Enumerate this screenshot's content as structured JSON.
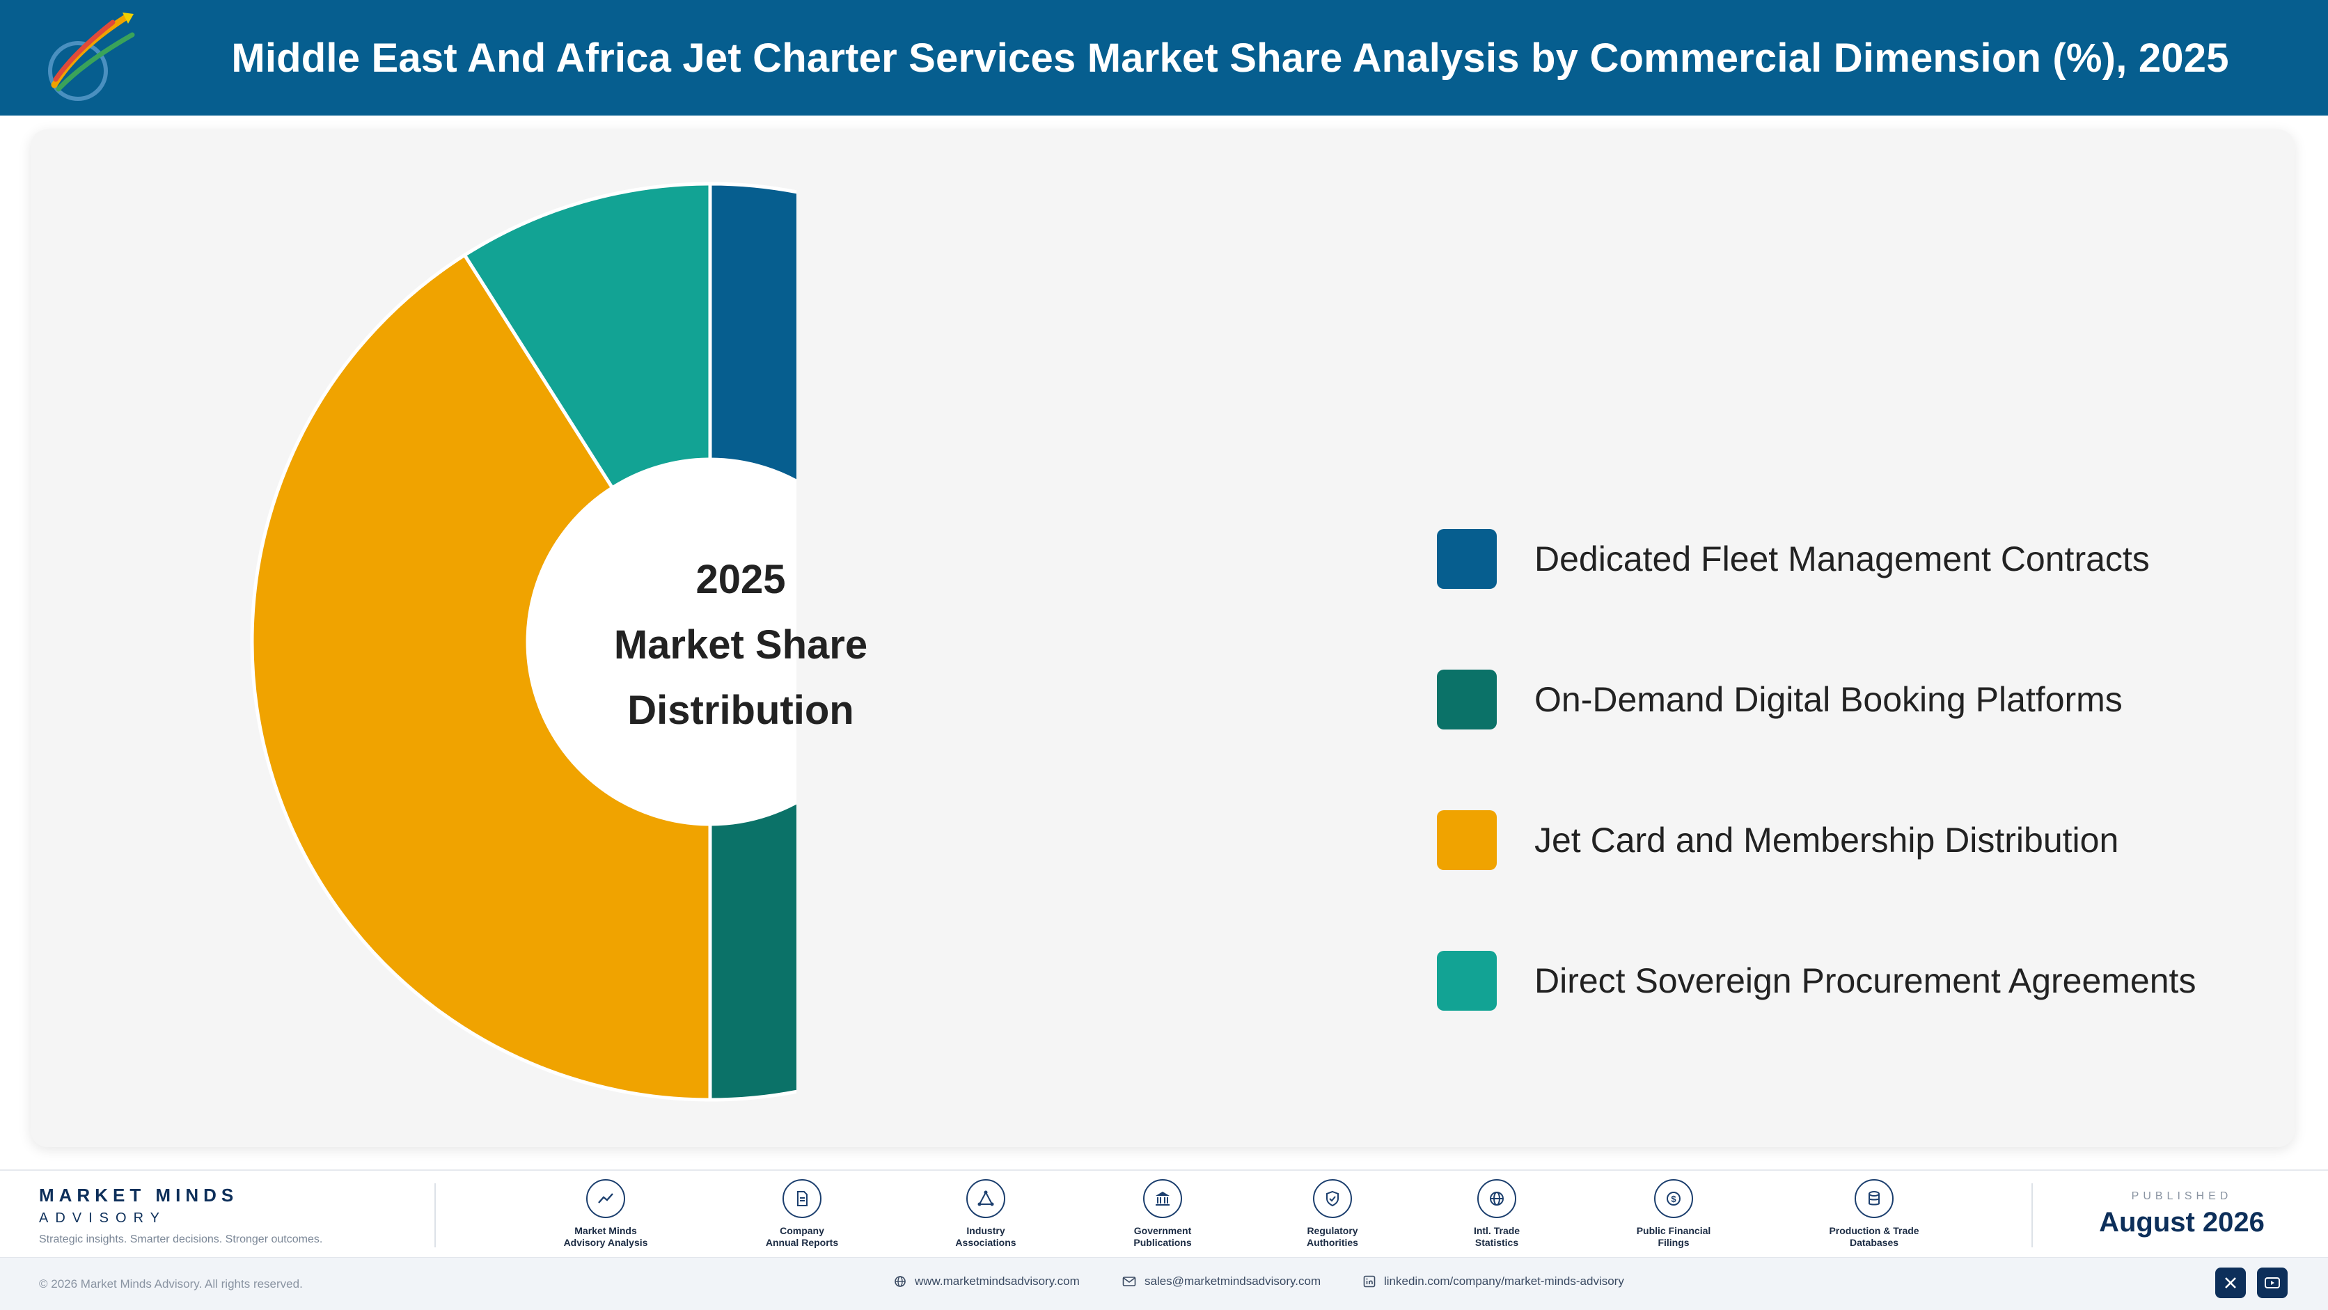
{
  "header": {
    "title": "Middle East And Africa Jet Charter Services Market Share Analysis by Commercial Dimension (%), 2025",
    "logo_text": "Market Minds Advisory"
  },
  "chart_data": {
    "type": "pie",
    "variant": "donut",
    "center_label": [
      "2025",
      "Market Share",
      "Distribution"
    ],
    "categories": [
      "Dedicated Fleet Management Contracts",
      "On-Demand Digital Booking Platforms",
      "Jet Card and Membership Distribution",
      "Direct Sovereign Procurement Agreements"
    ],
    "values": [
      39.5,
      10.5,
      41.0,
      9.0
    ],
    "colors": [
      "#065e8f",
      "#0b7268",
      "#f0a300",
      "#12a394"
    ],
    "legend_position": "right"
  },
  "footer": {
    "brand_name": "MARKET MINDS",
    "brand_sub": "ADVISORY",
    "brand_tagline": "Strategic insights. Smarter decisions. Stronger outcomes.",
    "sources": [
      {
        "label": "Market Minds\nAdvisory Analysis",
        "icon": "trend-line-icon"
      },
      {
        "label": "Company\nAnnual Reports",
        "icon": "document-icon"
      },
      {
        "label": "Industry\nAssociations",
        "icon": "network-icon"
      },
      {
        "label": "Government\nPublications",
        "icon": "government-building-icon"
      },
      {
        "label": "Regulatory\nAuthorities",
        "icon": "shield-check-icon"
      },
      {
        "label": "Intl. Trade\nStatistics",
        "icon": "globe-icon"
      },
      {
        "label": "Public Financial\nFilings",
        "icon": "dollar-coin-icon"
      },
      {
        "label": "Production & Trade\nDatabases",
        "icon": "database-icon"
      }
    ],
    "published_label": "PUBLISHED",
    "published_date": "August 2026"
  },
  "bottom_bar": {
    "copyright": "© 2026 Market Minds Advisory. All rights reserved.",
    "website": "www.marketmindsadvisory.com",
    "email": "sales@marketmindsadvisory.com",
    "linkedin": "linkedin.com/company/market-minds-advisory"
  }
}
